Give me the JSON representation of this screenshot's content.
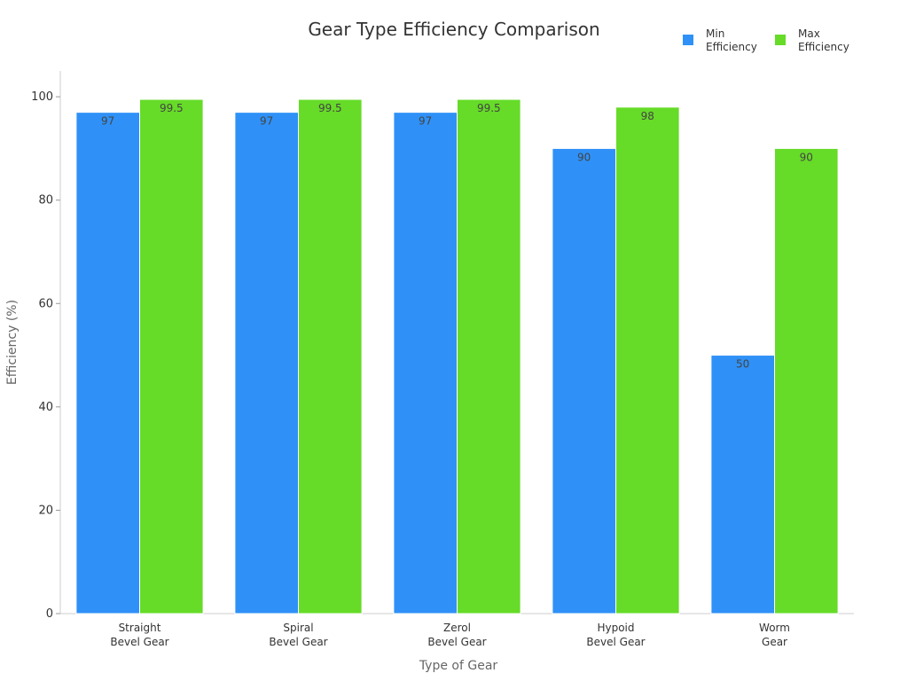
{
  "chart_data": {
    "type": "bar",
    "title": "Gear Type Efficiency Comparison",
    "xlabel": "Type of Gear",
    "ylabel": "Efficiency (%)",
    "categories": [
      [
        "Straight",
        "Bevel Gear"
      ],
      [
        "Spiral",
        "Bevel Gear"
      ],
      [
        "Zerol",
        "Bevel Gear"
      ],
      [
        "Hypoid",
        "Bevel Gear"
      ],
      [
        "Worm",
        "Gear"
      ]
    ],
    "series": [
      {
        "name": [
          "Min",
          "Efficiency"
        ],
        "color": "#2f91f7",
        "values": [
          97,
          97,
          97,
          90,
          50
        ]
      },
      {
        "name": [
          "Max",
          "Efficiency"
        ],
        "color": "#66db28",
        "values": [
          99.5,
          99.5,
          99.5,
          98,
          90
        ]
      }
    ],
    "ylim": [
      0,
      105
    ],
    "yticks": [
      0,
      20,
      40,
      60,
      80,
      100
    ],
    "grid": false,
    "legend_position": "top-right",
    "data_labels": true
  }
}
